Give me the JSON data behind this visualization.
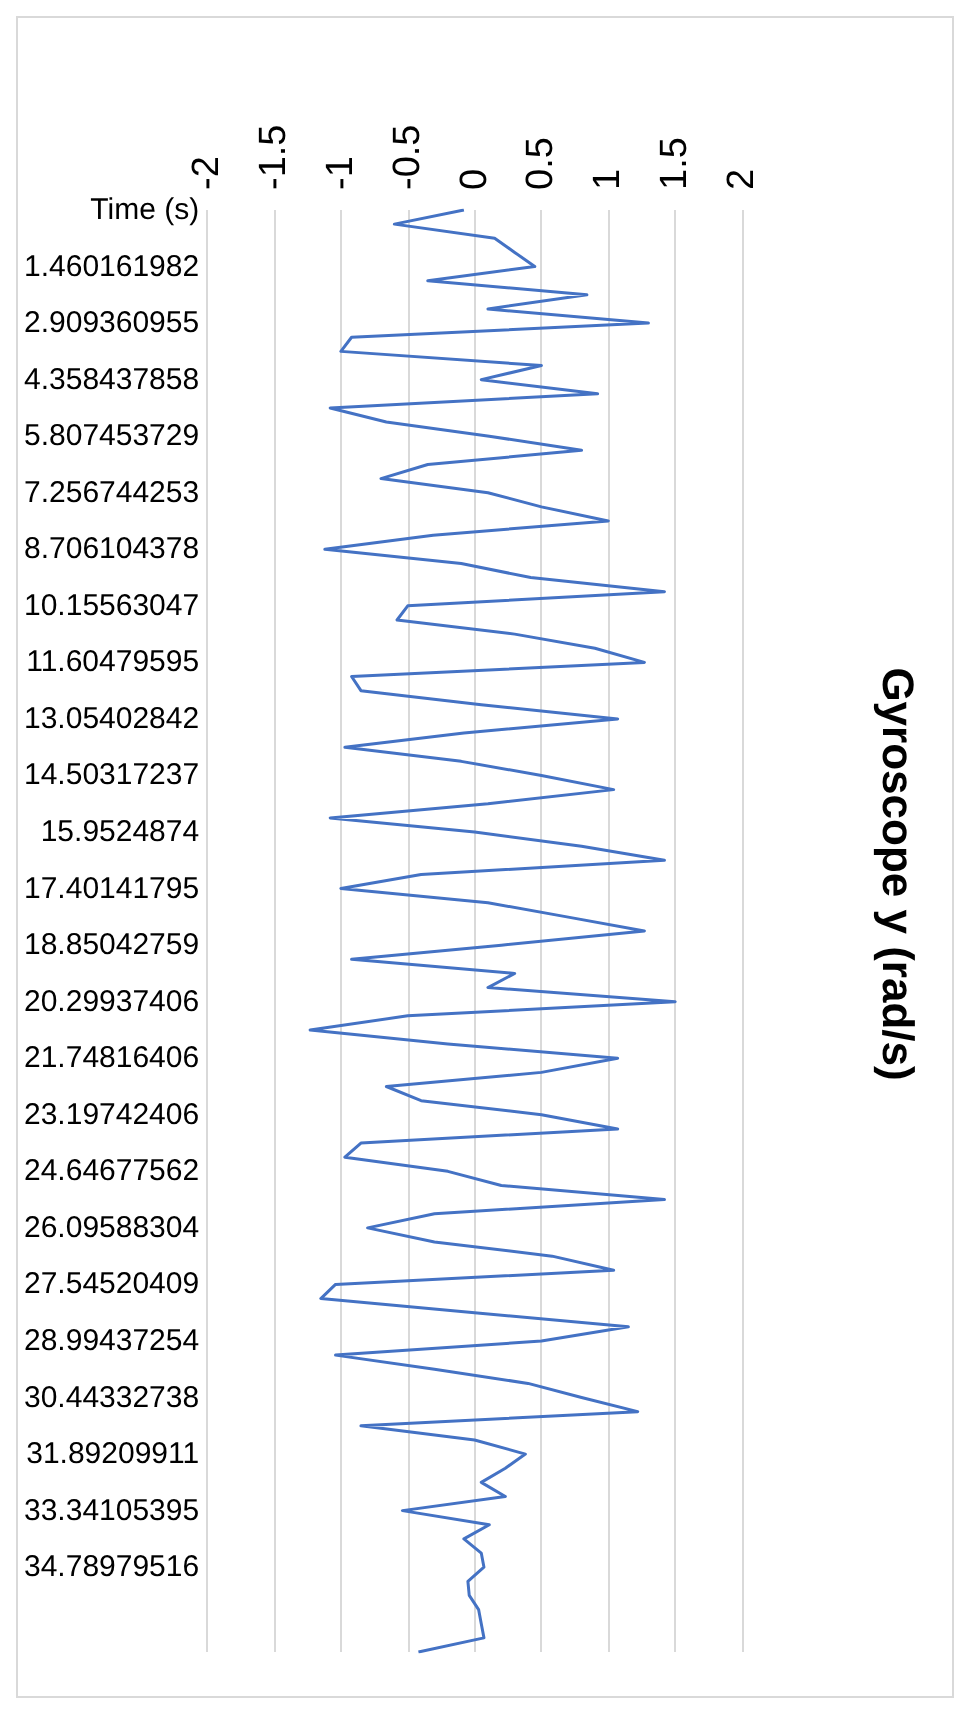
{
  "chart_data": {
    "type": "line",
    "title": "Gyroscope y (rad/s)",
    "orientation": "horizontal",
    "grid": "x",
    "categories": [
      "Time (s)",
      null,
      null,
      null,
      "1.460161982",
      null,
      null,
      null,
      "2.909360955",
      null,
      null,
      null,
      "4.358437858",
      null,
      null,
      null,
      "5.807453729",
      null,
      null,
      null,
      "7.256744253",
      null,
      null,
      null,
      "8.706104378",
      null,
      null,
      null,
      "10.15563047",
      null,
      null,
      null,
      "11.60479595",
      null,
      null,
      null,
      "13.05402842",
      null,
      null,
      null,
      "14.50317237",
      null,
      null,
      null,
      "15.9524874",
      null,
      null,
      null,
      "17.40141795",
      null,
      null,
      null,
      "18.85042759",
      null,
      null,
      null,
      "20.29937406",
      null,
      null,
      null,
      "21.74816406",
      null,
      null,
      null,
      "23.19742406",
      null,
      null,
      null,
      "24.64677562",
      null,
      null,
      null,
      "26.09588304",
      null,
      null,
      null,
      "27.54520409",
      null,
      null,
      null,
      "28.99437254",
      null,
      null,
      null,
      "30.44332738",
      null,
      null,
      null,
      "31.89209911",
      null,
      null,
      null,
      "33.34105395",
      null,
      null,
      null,
      "34.78979516",
      null,
      null,
      null,
      null,
      null,
      null
    ],
    "series": [
      {
        "color": "#4472c4",
        "values": [
          -0.08,
          -0.6,
          0.15,
          0.3,
          0.45,
          -0.35,
          0.84,
          0.1,
          1.3,
          -0.92,
          -1.0,
          0.5,
          0.05,
          0.92,
          -1.08,
          -0.66,
          0.11,
          0.8,
          -0.35,
          -0.7,
          0.1,
          0.5,
          1.0,
          -0.31,
          -1.12,
          -0.1,
          0.42,
          1.42,
          -0.5,
          -0.58,
          0.3,
          0.9,
          1.27,
          -0.92,
          -0.85,
          0.05,
          1.07,
          -0.08,
          -0.97,
          -0.1,
          0.5,
          1.04,
          0.1,
          -1.08,
          0.0,
          0.8,
          1.42,
          -0.4,
          -1.0,
          0.1,
          0.69,
          1.27,
          0.2,
          -0.92,
          0.3,
          0.1,
          1.5,
          -0.5,
          -1.23,
          -0.2,
          1.07,
          0.5,
          -0.66,
          -0.4,
          0.5,
          1.07,
          -0.85,
          -0.97,
          -0.2,
          0.2,
          1.42,
          -0.3,
          -0.8,
          -0.3,
          0.58,
          1.04,
          -1.04,
          -1.15,
          0.0,
          1.15,
          0.5,
          -1.04,
          -0.3,
          0.4,
          0.8,
          1.22,
          -0.85,
          0.0,
          0.38,
          0.23,
          0.05,
          0.23,
          -0.54,
          0.11,
          -0.08,
          0.05,
          0.07,
          -0.05,
          -0.04,
          0.03,
          0.05,
          0.07,
          -0.42
        ]
      }
    ],
    "xlim": [
      -2,
      2
    ],
    "xticks": [
      -2,
      -1.5,
      -1,
      -0.5,
      0,
      0.5,
      1,
      1.5,
      2
    ]
  }
}
